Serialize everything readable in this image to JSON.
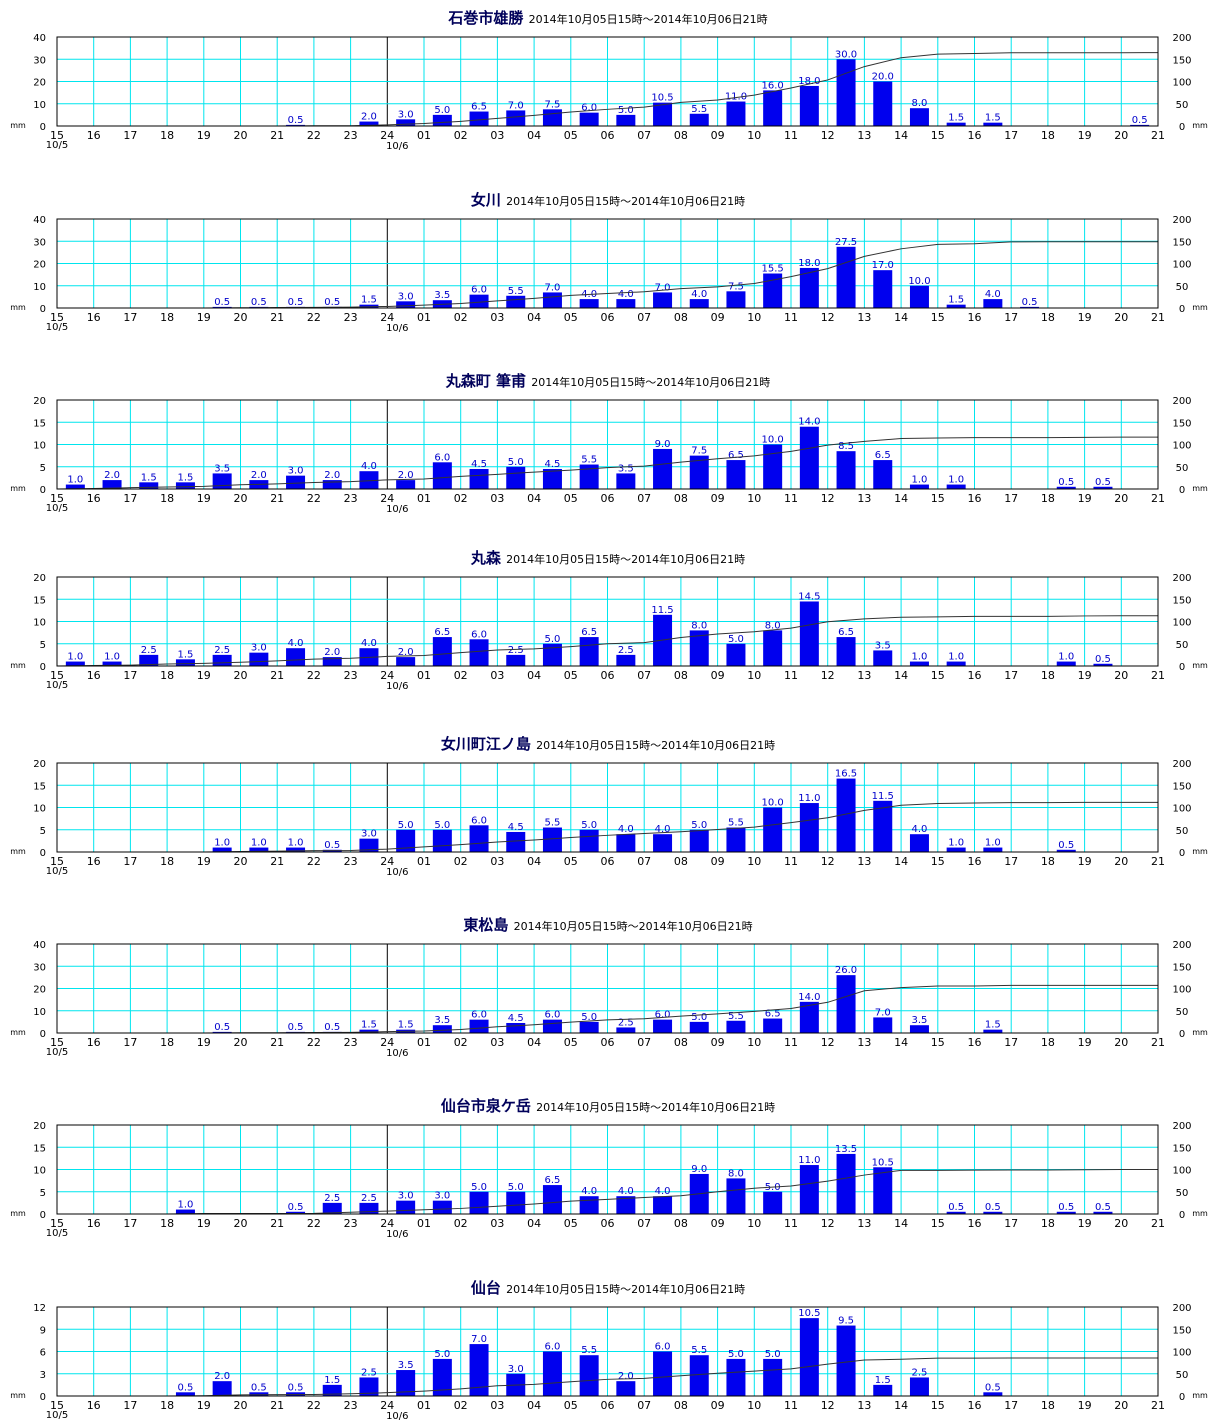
{
  "page": {
    "period": "2014年10月05日15時～2014年10月06日21時",
    "unit": "mm",
    "hour_labels": [
      "15",
      "16",
      "17",
      "18",
      "19",
      "20",
      "21",
      "22",
      "23",
      "24",
      "01",
      "02",
      "03",
      "04",
      "05",
      "06",
      "07",
      "08",
      "09",
      "10",
      "11",
      "12",
      "13",
      "14",
      "15",
      "16",
      "17",
      "18",
      "19",
      "20",
      "21"
    ],
    "date_label_start": "10/5",
    "date_label_mid": "10/6",
    "colors": {
      "bar": "#0000ee",
      "grid": "#00e5ee",
      "title": "#00005a",
      "value_label": "#0000cc",
      "cumulative_line": "#333333"
    }
  },
  "chart_data": [
    {
      "type": "bar",
      "title": "石巻市雄勝",
      "left_ylim": [
        0,
        40
      ],
      "left_ticks": [
        "0",
        "10",
        "20",
        "30",
        "40"
      ],
      "right_ylim": [
        0,
        200
      ],
      "right_ticks": [
        "0",
        "50",
        "100",
        "150",
        "200"
      ],
      "series": [
        {
          "name": "hourly",
          "values": [
            0,
            0,
            0,
            0,
            0,
            0,
            0.5,
            0,
            2.0,
            3.0,
            5.0,
            6.5,
            7.0,
            7.5,
            6.0,
            5.0,
            10.5,
            5.5,
            11.0,
            16.0,
            18.0,
            30.0,
            20.0,
            8.0,
            1.5,
            1.5,
            0,
            0,
            0,
            0.5
          ]
        },
        {
          "name": "cumulative",
          "values": [
            0,
            0,
            0,
            0,
            0,
            0,
            0.5,
            0.5,
            2.5,
            5.5,
            10.5,
            17.0,
            24.0,
            31.5,
            37.5,
            42.5,
            53.0,
            58.5,
            69.5,
            85.5,
            103.5,
            133.5,
            153.5,
            161.5,
            163.0,
            164.5,
            164.5,
            164.5,
            164.5,
            165.0
          ]
        }
      ]
    },
    {
      "type": "bar",
      "title": "女川",
      "left_ylim": [
        0,
        40
      ],
      "left_ticks": [
        "0",
        "10",
        "20",
        "30",
        "40"
      ],
      "right_ylim": [
        0,
        200
      ],
      "right_ticks": [
        "0",
        "50",
        "100",
        "150",
        "200"
      ],
      "series": [
        {
          "name": "hourly",
          "values": [
            0,
            0,
            0,
            0,
            0.5,
            0.5,
            0.5,
            0.5,
            1.5,
            3.0,
            3.5,
            6.0,
            5.5,
            7.0,
            4.0,
            4.0,
            7.0,
            4.0,
            7.5,
            15.5,
            18.0,
            27.5,
            17.0,
            10.0,
            1.5,
            4.0,
            0.5,
            0,
            0,
            0
          ]
        },
        {
          "name": "cumulative",
          "values": [
            0,
            0,
            0,
            0,
            0.5,
            1.0,
            1.5,
            2.0,
            3.5,
            6.5,
            10.0,
            16.0,
            21.5,
            28.5,
            32.5,
            36.5,
            43.5,
            47.5,
            55.0,
            70.5,
            88.5,
            116.0,
            133.0,
            143.0,
            144.5,
            148.5,
            149.0,
            149.0,
            149.0,
            149.0
          ]
        }
      ]
    },
    {
      "type": "bar",
      "title": "丸森町 筆甫",
      "left_ylim": [
        0,
        20
      ],
      "left_ticks": [
        "0",
        "5",
        "10",
        "15",
        "20"
      ],
      "right_ylim": [
        0,
        200
      ],
      "right_ticks": [
        "0",
        "50",
        "100",
        "150",
        "200"
      ],
      "series": [
        {
          "name": "hourly",
          "values": [
            1.0,
            2.0,
            1.5,
            1.5,
            3.5,
            2.0,
            3.0,
            2.0,
            4.0,
            2.0,
            6.0,
            4.5,
            5.0,
            4.5,
            5.5,
            3.5,
            9.0,
            7.5,
            6.5,
            10.0,
            14.0,
            8.5,
            6.5,
            1.0,
            1.0,
            0,
            0,
            0.5,
            0.5,
            0
          ]
        },
        {
          "name": "cumulative",
          "values": [
            1.0,
            3.0,
            4.5,
            6.0,
            9.5,
            11.5,
            14.5,
            16.5,
            20.5,
            22.5,
            28.5,
            33.0,
            38.0,
            42.5,
            48.0,
            51.5,
            60.5,
            68.0,
            74.5,
            84.5,
            98.5,
            107.0,
            113.5,
            114.5,
            115.5,
            115.5,
            115.5,
            116.0,
            116.5,
            116.5
          ]
        }
      ]
    },
    {
      "type": "bar",
      "title": "丸森",
      "left_ylim": [
        0,
        20
      ],
      "left_ticks": [
        "0",
        "5",
        "10",
        "15",
        "20"
      ],
      "right_ylim": [
        0,
        200
      ],
      "right_ticks": [
        "0",
        "50",
        "100",
        "150",
        "200"
      ],
      "series": [
        {
          "name": "hourly",
          "values": [
            1.0,
            1.0,
            2.5,
            1.5,
            2.5,
            3.0,
            4.0,
            2.0,
            4.0,
            2.0,
            6.5,
            6.0,
            2.5,
            5.0,
            6.5,
            2.5,
            11.5,
            8.0,
            5.0,
            8.0,
            14.5,
            6.5,
            3.5,
            1.0,
            1.0,
            0,
            0,
            1.0,
            0.5,
            0
          ]
        },
        {
          "name": "cumulative",
          "values": [
            1.0,
            2.0,
            4.5,
            6.0,
            8.5,
            11.5,
            15.5,
            17.5,
            21.5,
            23.5,
            30.0,
            36.0,
            38.5,
            43.5,
            50.0,
            52.5,
            64.0,
            72.0,
            77.0,
            85.0,
            99.5,
            106.0,
            109.5,
            110.5,
            111.5,
            111.5,
            111.5,
            112.5,
            113.0,
            113.0
          ]
        }
      ]
    },
    {
      "type": "bar",
      "title": "女川町江ノ島",
      "left_ylim": [
        0,
        20
      ],
      "left_ticks": [
        "0",
        "5",
        "10",
        "15",
        "20"
      ],
      "right_ylim": [
        0,
        200
      ],
      "right_ticks": [
        "0",
        "50",
        "100",
        "150",
        "200"
      ],
      "series": [
        {
          "name": "hourly",
          "values": [
            0,
            0,
            0,
            0,
            1.0,
            1.0,
            1.0,
            0.5,
            3.0,
            5.0,
            5.0,
            6.0,
            4.5,
            5.5,
            5.0,
            4.0,
            4.0,
            5.0,
            5.5,
            10.0,
            11.0,
            16.5,
            11.5,
            4.0,
            1.0,
            1.0,
            0,
            0.5,
            0,
            0
          ]
        },
        {
          "name": "cumulative",
          "values": [
            0,
            0,
            0,
            0,
            1.0,
            2.0,
            3.0,
            3.5,
            6.5,
            11.5,
            16.5,
            22.5,
            27.0,
            32.5,
            37.5,
            41.5,
            45.5,
            50.5,
            56.0,
            66.0,
            77.0,
            93.5,
            105.0,
            109.0,
            110.0,
            111.0,
            111.0,
            111.5,
            111.5,
            111.5
          ]
        }
      ]
    },
    {
      "type": "bar",
      "title": "東松島",
      "left_ylim": [
        0,
        40
      ],
      "left_ticks": [
        "0",
        "10",
        "20",
        "30",
        "40"
      ],
      "right_ylim": [
        0,
        200
      ],
      "right_ticks": [
        "0",
        "50",
        "100",
        "150",
        "200"
      ],
      "series": [
        {
          "name": "hourly",
          "values": [
            0,
            0,
            0,
            0,
            0.5,
            0,
            0.5,
            0.5,
            1.5,
            1.5,
            3.5,
            6.0,
            4.5,
            6.0,
            5.0,
            2.5,
            6.0,
            5.0,
            5.5,
            6.5,
            14.0,
            26.0,
            7.0,
            3.5,
            0,
            1.5,
            0,
            0,
            0,
            0
          ]
        },
        {
          "name": "cumulative",
          "values": [
            0,
            0,
            0,
            0,
            0.5,
            0.5,
            1.0,
            1.5,
            3.0,
            4.5,
            8.0,
            14.0,
            18.5,
            24.5,
            29.5,
            32.0,
            38.0,
            43.0,
            48.5,
            55.0,
            69.0,
            95.0,
            102.0,
            105.5,
            105.5,
            107.0,
            107.0,
            107.0,
            107.0,
            107.0
          ]
        }
      ]
    },
    {
      "type": "bar",
      "title": "仙台市泉ケ岳",
      "left_ylim": [
        0,
        20
      ],
      "left_ticks": [
        "0",
        "5",
        "10",
        "15",
        "20"
      ],
      "right_ylim": [
        0,
        200
      ],
      "right_ticks": [
        "0",
        "50",
        "100",
        "150",
        "200"
      ],
      "series": [
        {
          "name": "hourly",
          "values": [
            0,
            0,
            0,
            1.0,
            0,
            0,
            0.5,
            2.5,
            2.5,
            3.0,
            3.0,
            5.0,
            5.0,
            6.5,
            4.0,
            4.0,
            4.0,
            9.0,
            8.0,
            5.0,
            11.0,
            13.5,
            10.5,
            0,
            0.5,
            0.5,
            0,
            0.5,
            0.5,
            0
          ]
        },
        {
          "name": "cumulative",
          "values": [
            0,
            0,
            0,
            1.0,
            1.0,
            1.0,
            1.5,
            4.0,
            6.5,
            9.5,
            12.5,
            17.5,
            22.5,
            29.0,
            33.0,
            37.0,
            41.0,
            50.0,
            58.0,
            63.0,
            74.0,
            87.5,
            98.0,
            98.0,
            98.5,
            99.0,
            99.0,
            99.5,
            100.0,
            100.0
          ]
        }
      ]
    },
    {
      "type": "bar",
      "title": "仙台",
      "left_ylim": [
        0,
        12
      ],
      "left_ticks": [
        "0",
        "3",
        "6",
        "9",
        "12"
      ],
      "right_ylim": [
        0,
        200
      ],
      "right_ticks": [
        "0",
        "50",
        "100",
        "150",
        "200"
      ],
      "series": [
        {
          "name": "hourly",
          "values": [
            0,
            0,
            0,
            0.5,
            2.0,
            0.5,
            0.5,
            1.5,
            2.5,
            3.5,
            5.0,
            7.0,
            3.0,
            6.0,
            5.5,
            2.0,
            6.0,
            5.5,
            5.0,
            5.0,
            10.5,
            9.5,
            1.5,
            2.5,
            0,
            0.5,
            0,
            0,
            0,
            0
          ]
        },
        {
          "name": "cumulative",
          "values": [
            0,
            0,
            0,
            0.5,
            2.5,
            3.0,
            3.5,
            5.0,
            7.5,
            11.0,
            16.0,
            23.0,
            26.0,
            32.0,
            37.5,
            39.5,
            45.5,
            51.0,
            56.0,
            61.0,
            71.5,
            81.0,
            82.5,
            85.0,
            85.0,
            85.5,
            85.5,
            85.5,
            85.5,
            85.5
          ]
        }
      ]
    }
  ]
}
